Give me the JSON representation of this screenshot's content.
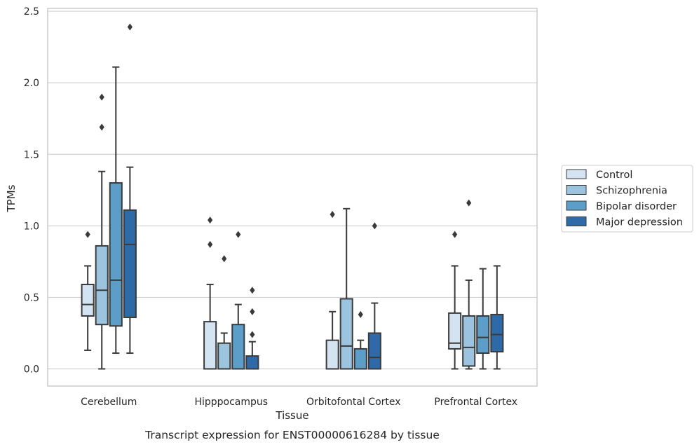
{
  "chart_data": {
    "type": "box",
    "xlabel": "Tissue",
    "ylabel": "TPMs",
    "caption": "Transcript expression for ENST00000616284 by tissue",
    "ylim": [
      -0.12,
      2.52
    ],
    "yticks": [
      "0.0",
      "0.5",
      "1.0",
      "1.5",
      "2.0",
      "2.5"
    ],
    "ytick_values": [
      0.0,
      0.5,
      1.0,
      1.5,
      2.0,
      2.5
    ],
    "grid": "horizontal",
    "legend_position": "right",
    "categories": [
      "Cerebellum",
      "Hipppocampus",
      "Orbitofontal Cortex",
      "Prefrontal Cortex"
    ],
    "series": [
      {
        "name": "Control",
        "color": "#d4e3f2",
        "boxes": [
          {
            "whisker_low": 0.13,
            "q1": 0.37,
            "median": 0.45,
            "q3": 0.59,
            "whisker_high": 0.72,
            "outliers": [
              0.94
            ]
          },
          {
            "whisker_low": 0.0,
            "q1": 0.0,
            "median": 0.0,
            "q3": 0.33,
            "whisker_high": 0.59,
            "outliers": [
              0.87,
              1.04
            ]
          },
          {
            "whisker_low": 0.0,
            "q1": 0.0,
            "median": 0.0,
            "q3": 0.2,
            "whisker_high": 0.4,
            "outliers": [
              1.08
            ]
          },
          {
            "whisker_low": 0.0,
            "q1": 0.14,
            "median": 0.18,
            "q3": 0.39,
            "whisker_high": 0.72,
            "outliers": [
              0.94
            ]
          }
        ]
      },
      {
        "name": "Schizophrenia",
        "color": "#9dc4de",
        "boxes": [
          {
            "whisker_low": 0.0,
            "q1": 0.31,
            "median": 0.55,
            "q3": 0.86,
            "whisker_high": 1.38,
            "outliers": [
              1.69,
              1.9
            ]
          },
          {
            "whisker_low": 0.0,
            "q1": 0.0,
            "median": 0.0,
            "q3": 0.18,
            "whisker_high": 0.25,
            "outliers": [
              0.77
            ]
          },
          {
            "whisker_low": 0.0,
            "q1": 0.0,
            "median": 0.16,
            "q3": 0.49,
            "whisker_high": 1.12,
            "outliers": []
          },
          {
            "whisker_low": 0.0,
            "q1": 0.02,
            "median": 0.15,
            "q3": 0.37,
            "whisker_high": 0.62,
            "outliers": [
              1.16
            ]
          }
        ]
      },
      {
        "name": "Bipolar disorder",
        "color": "#5d9ec9",
        "boxes": [
          {
            "whisker_low": 0.11,
            "q1": 0.3,
            "median": 0.62,
            "q3": 1.3,
            "whisker_high": 2.11,
            "outliers": []
          },
          {
            "whisker_low": 0.0,
            "q1": 0.0,
            "median": 0.0,
            "q3": 0.31,
            "whisker_high": 0.45,
            "outliers": [
              0.94
            ]
          },
          {
            "whisker_low": 0.0,
            "q1": 0.0,
            "median": 0.0,
            "q3": 0.14,
            "whisker_high": 0.2,
            "outliers": [
              0.38
            ]
          },
          {
            "whisker_low": 0.0,
            "q1": 0.11,
            "median": 0.22,
            "q3": 0.37,
            "whisker_high": 0.7,
            "outliers": []
          }
        ]
      },
      {
        "name": "Major depression",
        "color": "#2e6aa8",
        "boxes": [
          {
            "whisker_low": 0.11,
            "q1": 0.36,
            "median": 0.87,
            "q3": 1.11,
            "whisker_high": 1.41,
            "outliers": [
              2.39
            ]
          },
          {
            "whisker_low": 0.0,
            "q1": 0.0,
            "median": 0.0,
            "q3": 0.09,
            "whisker_high": 0.19,
            "outliers": [
              0.24,
              0.4,
              0.55
            ]
          },
          {
            "whisker_low": 0.0,
            "q1": 0.0,
            "median": 0.08,
            "q3": 0.25,
            "whisker_high": 0.46,
            "outliers": [
              1.0
            ]
          },
          {
            "whisker_low": 0.0,
            "q1": 0.12,
            "median": 0.24,
            "q3": 0.38,
            "whisker_high": 0.72,
            "outliers": []
          }
        ]
      }
    ]
  }
}
